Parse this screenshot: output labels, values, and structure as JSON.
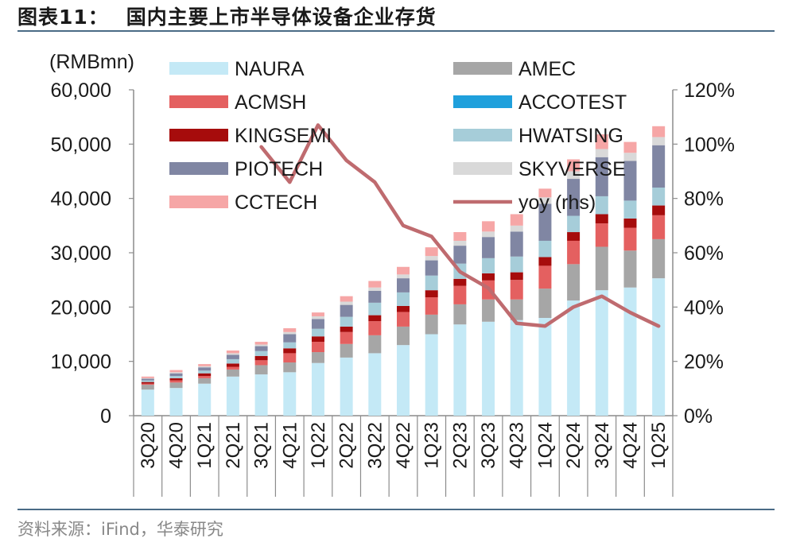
{
  "figure": {
    "label": "图表11：",
    "title": "国内主要上市半导体设备企业存货",
    "source": "资料来源：iFind，华泰研究"
  },
  "chart_data": {
    "type": "bar",
    "stacked": true,
    "unit_label": "(RMBmn)",
    "categories": [
      "3Q20",
      "4Q20",
      "1Q21",
      "2Q21",
      "3Q21",
      "4Q21",
      "1Q22",
      "2Q22",
      "3Q22",
      "4Q22",
      "1Q23",
      "2Q23",
      "3Q23",
      "4Q23",
      "1Q24",
      "2Q24",
      "3Q24",
      "4Q24",
      "1Q25"
    ],
    "ylim": [
      0,
      60000
    ],
    "yticks": [
      0,
      10000,
      20000,
      30000,
      40000,
      50000,
      60000
    ],
    "ytick_labels": [
      "0",
      "10,000",
      "20,000",
      "30,000",
      "40,000",
      "50,000",
      "60,000"
    ],
    "y2lim": [
      0,
      1.2
    ],
    "y2ticks": [
      0,
      0.2,
      0.4,
      0.6,
      0.8,
      1.0,
      1.2
    ],
    "y2tick_labels": [
      "0%",
      "20%",
      "40%",
      "60%",
      "80%",
      "100%",
      "120%"
    ],
    "grid": false,
    "legend": "top, two columns",
    "series": [
      {
        "name": "NAURA",
        "color": "#c4e9f6",
        "values": [
          4800,
          5100,
          5900,
          7200,
          7600,
          8000,
          9700,
          10700,
          11500,
          13000,
          15000,
          16800,
          17300,
          17600,
          18000,
          21200,
          23100,
          23600,
          25300
        ]
      },
      {
        "name": "AMEC",
        "color": "#a6a6a6",
        "values": [
          900,
          1000,
          1000,
          1300,
          1700,
          1800,
          2000,
          2500,
          3300,
          3400,
          3600,
          3700,
          4100,
          3800,
          5400,
          6700,
          8000,
          6800,
          7200
        ]
      },
      {
        "name": "ACMSH",
        "color": "#e46060",
        "values": [
          200,
          400,
          400,
          500,
          900,
          1700,
          1900,
          2200,
          2600,
          2700,
          3200,
          3400,
          3500,
          3600,
          4200,
          4300,
          4300,
          4200,
          4400
        ]
      },
      {
        "name": "ACCOTEST",
        "color": "#1fa0dc",
        "values": [
          0,
          0,
          0,
          0,
          0,
          0,
          0,
          0,
          0,
          0,
          0,
          0,
          0,
          0,
          0,
          0,
          0,
          0,
          0
        ]
      },
      {
        "name": "KINGSEMI",
        "color": "#a60c0c",
        "values": [
          300,
          400,
          500,
          600,
          800,
          900,
          1000,
          1000,
          1100,
          1100,
          1300,
          1300,
          1300,
          1400,
          1600,
          1600,
          1700,
          1700,
          1800
        ]
      },
      {
        "name": "HWATSING",
        "color": "#a6cdd9",
        "values": [
          300,
          400,
          500,
          800,
          900,
          1100,
          1400,
          1800,
          2300,
          2500,
          2700,
          2800,
          2800,
          2900,
          3000,
          3000,
          3300,
          3300,
          3300
        ]
      },
      {
        "name": "PIOTECH",
        "color": "#8086a3",
        "values": [
          300,
          500,
          600,
          800,
          900,
          1500,
          1800,
          2200,
          2200,
          2600,
          2800,
          3300,
          3900,
          4600,
          6800,
          6800,
          7200,
          7300,
          7800
        ]
      },
      {
        "name": "SKYVERSE",
        "color": "#d9d9d9",
        "values": [
          100,
          200,
          200,
          300,
          300,
          400,
          500,
          600,
          600,
          700,
          800,
          900,
          1000,
          1100,
          1200,
          1400,
          1500,
          1500,
          1500
        ]
      },
      {
        "name": "CCTECH",
        "color": "#f6a6a6",
        "values": [
          300,
          400,
          400,
          500,
          500,
          700,
          700,
          1000,
          1200,
          1400,
          1600,
          1600,
          1900,
          2100,
          1600,
          2200,
          2700,
          2000,
          2000
        ]
      }
    ],
    "line": {
      "name": "yoy (rhs)",
      "color": "#bf6b6f",
      "start_index": 4,
      "values": [
        0.99,
        0.86,
        1.07,
        0.94,
        0.86,
        0.7,
        0.66,
        0.53,
        0.47,
        0.34,
        0.33,
        0.4,
        0.44,
        0.38,
        0.33
      ]
    }
  }
}
